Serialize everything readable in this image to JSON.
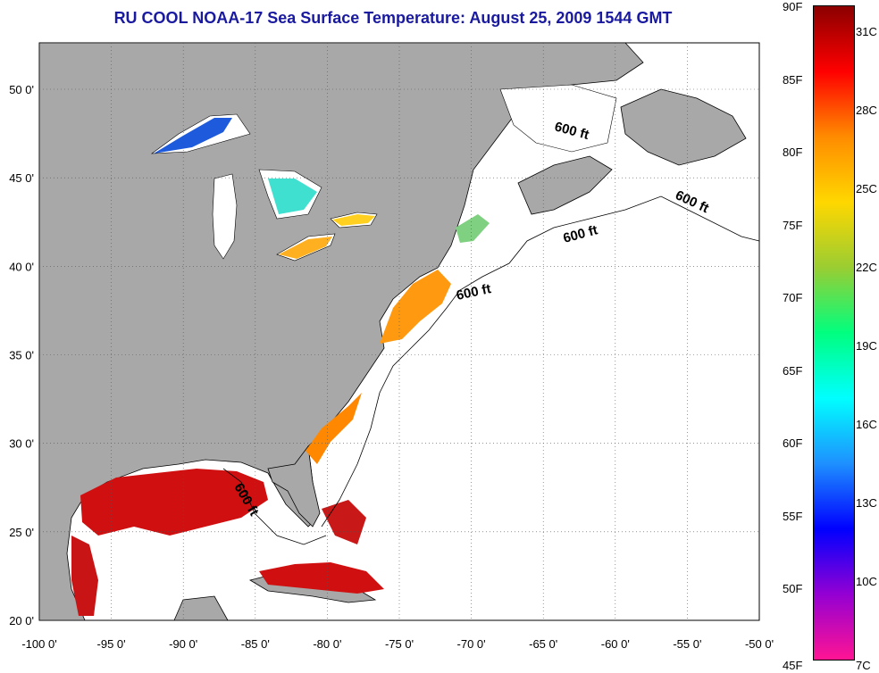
{
  "title": "RU COOL  NOAA-17  Sea Surface Temperature:  August 25, 2009 1544 GMT",
  "map": {
    "lon_ticks": [
      "-100 0'",
      "-95 0'",
      "-90 0'",
      "-85 0'",
      "-80 0'",
      "-75 0'",
      "-70 0'",
      "-65 0'",
      "-60 0'",
      "-55 0'",
      "-50 0'"
    ],
    "lat_ticks": [
      "50 0'",
      "45 0'",
      "40 0'",
      "35 0'",
      "30 0'",
      "25 0'",
      "20 0'"
    ],
    "contour_labels": [
      "600 ft",
      "600 ft",
      "600 ft",
      "600 ft",
      "600 ft"
    ]
  },
  "colorbar": {
    "fahrenheit_labels": [
      "90F",
      "85F",
      "80F",
      "75F",
      "70F",
      "65F",
      "60F",
      "55F",
      "50F",
      "45F"
    ],
    "celsius_labels": [
      "31C",
      "28C",
      "25C",
      "22C",
      "19C",
      "16C",
      "13C",
      "10C",
      "7C"
    ],
    "gradient_colors": [
      "#8b0000",
      "#ff0000",
      "#ff8c00",
      "#ffd700",
      "#9acd32",
      "#00ff7f",
      "#00ffff",
      "#1e90ff",
      "#0000ff",
      "#9400d3",
      "#ff1493"
    ]
  }
}
